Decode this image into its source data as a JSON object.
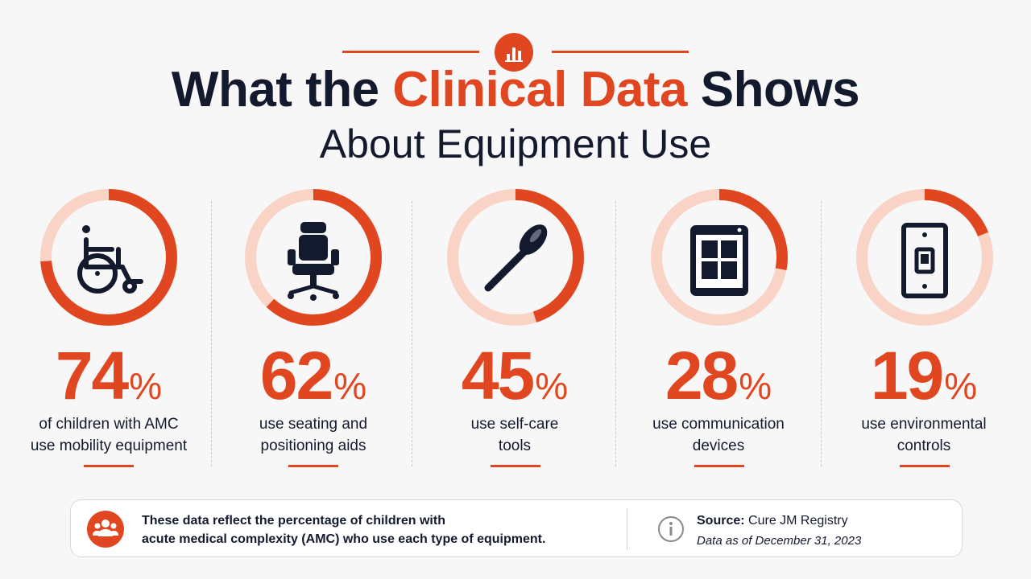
{
  "header": {
    "title_part1": "What the ",
    "title_accent": "Clinical Data",
    "title_part2": " Shows",
    "subtitle": "About Equipment Use",
    "badge_icon": "bar-chart-icon"
  },
  "colors": {
    "accent": "#e0461f",
    "ring_track": "#f8d3c6",
    "navy": "#141a2e"
  },
  "chart_data": {
    "type": "pie",
    "unit": "%",
    "title": "What the Clinical Data Shows About Equipment Use",
    "series": [
      {
        "name": "",
        "values": [
          74,
          62,
          45,
          28,
          19
        ]
      }
    ],
    "categories": [
      "of children with AMC use mobility equipment",
      "use seating and positioning aids",
      "use self-care tools",
      "use communication devices",
      "use environmental controls"
    ]
  },
  "stats": [
    {
      "value": 74,
      "percent_sign": "%",
      "desc_line1": "of children with AMC",
      "desc_line2": "use mobility equipment",
      "icon": "wheelchair-icon"
    },
    {
      "value": 62,
      "percent_sign": "%",
      "desc_line1": "use seating and",
      "desc_line2": "positioning aids",
      "icon": "office-chair-icon"
    },
    {
      "value": 45,
      "percent_sign": "%",
      "desc_line1": "use self-care",
      "desc_line2": "tools",
      "icon": "spoon-icon"
    },
    {
      "value": 28,
      "percent_sign": "%",
      "desc_line1": "use communication",
      "desc_line2": "devices",
      "icon": "tablet-icon"
    },
    {
      "value": 19,
      "percent_sign": "%",
      "desc_line1": "use environmental",
      "desc_line2": "controls",
      "icon": "light-switch-icon"
    }
  ],
  "footer": {
    "note_line1": "These data reflect the percentage of children with",
    "note_line2": "acute medical complexity (AMC) who use each type of equipment.",
    "note_icon": "people-group-icon",
    "source_label": "Source:",
    "source_value": "Cure JM Registry",
    "as_of": "Data as of December 31, 2023",
    "info_icon": "info-icon"
  }
}
